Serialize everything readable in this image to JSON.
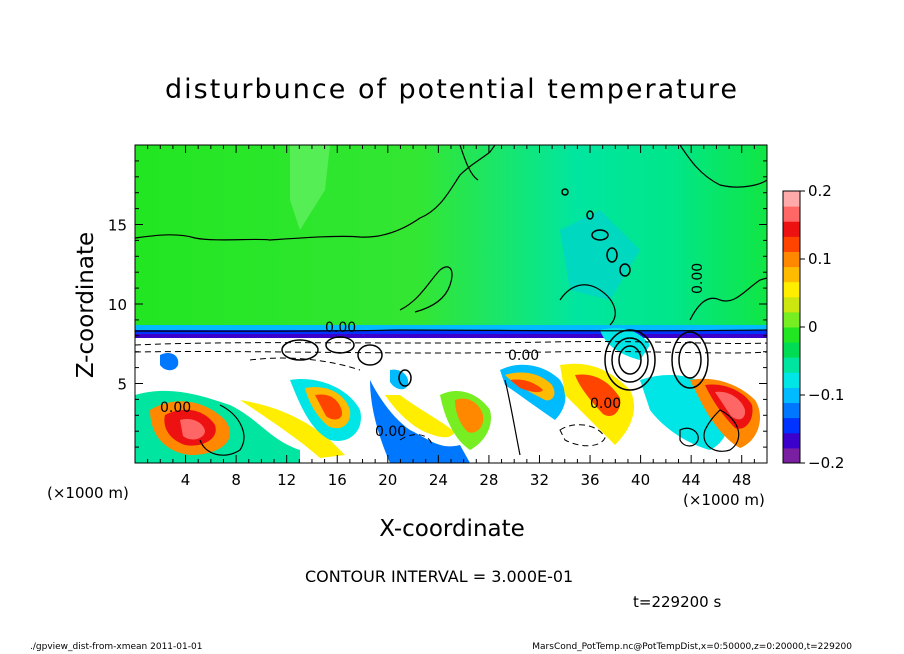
{
  "chart_data": {
    "type": "heatmap",
    "title": "disturbunce of potential temperature",
    "xlabel": "X-coordinate",
    "ylabel": "Z-coordinate",
    "x_units": "(×1000 m)",
    "xlim": [
      0,
      50
    ],
    "ylim": [
      0,
      20
    ],
    "x_ticks": [
      "4",
      "8",
      "12",
      "16",
      "20",
      "24",
      "28",
      "32",
      "36",
      "40",
      "44",
      "48"
    ],
    "y_ticks": [
      "5",
      "10",
      "15"
    ],
    "colorbar": {
      "range": [
        -0.2,
        0.2
      ],
      "tick_labels": [
        "0.2",
        "0.1",
        "0",
        "−0.1",
        "−0.2"
      ],
      "colors": [
        "#7a1fa2",
        "#3b00cc",
        "#0033ff",
        "#0077ff",
        "#00bbff",
        "#00e6e6",
        "#00e6a0",
        "#00dd55",
        "#22e622",
        "#77ee22",
        "#cce60f",
        "#ffee00",
        "#ffbb00",
        "#ff8800",
        "#ff4400",
        "#ee1111",
        "#ff6666",
        "#ffaaaa"
      ]
    },
    "contour_labels": [
      "0.00",
      "0.00",
      "0.00",
      "0.00",
      "0.00",
      "0.00"
    ],
    "contour_interval": "CONTOUR INTERVAL = 3.000E-01",
    "time": "t=229200 s"
  },
  "footer": {
    "left": "./gpview_dist-from-xmean  2011-01-01",
    "right": "MarsCond_PotTemp.nc@PotTempDist,x=0:50000,z=0:20000,t=229200"
  }
}
